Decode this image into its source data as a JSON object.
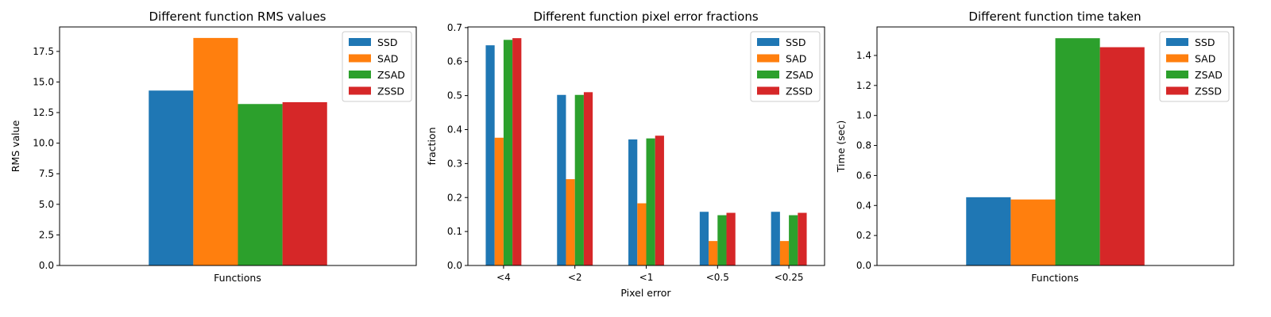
{
  "colors": {
    "SSD": "#1f77b4",
    "SAD": "#ff7f0e",
    "ZSAD": "#2ca02c",
    "ZSSD": "#d62728"
  },
  "chart_data": [
    {
      "type": "bar",
      "title": "Different function RMS values",
      "xlabel": "Functions",
      "ylabel": "RMS value",
      "categories": [
        ""
      ],
      "series": [
        {
          "name": "SSD",
          "values": [
            14.3
          ]
        },
        {
          "name": "SAD",
          "values": [
            18.6
          ]
        },
        {
          "name": "ZSAD",
          "values": [
            13.2
          ]
        },
        {
          "name": "ZSSD",
          "values": [
            13.35
          ]
        }
      ],
      "ylim": [
        0,
        19.5
      ],
      "yticks": [
        0.0,
        2.5,
        5.0,
        7.5,
        10.0,
        12.5,
        15.0,
        17.5
      ],
      "ytick_labels": [
        "0.0",
        "2.5",
        "5.0",
        "7.5",
        "10.0",
        "12.5",
        "15.0",
        "17.5"
      ],
      "legend": "top-right",
      "grid": false
    },
    {
      "type": "bar",
      "title": "Different function pixel error fractions",
      "xlabel": "Pixel error",
      "ylabel": "fraction",
      "categories": [
        "<4",
        "<2",
        "<1",
        "<0.5",
        "<0.25"
      ],
      "series": [
        {
          "name": "SSD",
          "values": [
            0.648,
            0.502,
            0.371,
            0.158,
            0.158
          ]
        },
        {
          "name": "SAD",
          "values": [
            0.376,
            0.254,
            0.183,
            0.072,
            0.072
          ]
        },
        {
          "name": "ZSAD",
          "values": [
            0.664,
            0.502,
            0.374,
            0.148,
            0.148
          ]
        },
        {
          "name": "ZSSD",
          "values": [
            0.669,
            0.51,
            0.382,
            0.155,
            0.155
          ]
        }
      ],
      "ylim": [
        0,
        0.702
      ],
      "yticks": [
        0.0,
        0.1,
        0.2,
        0.3,
        0.4,
        0.5,
        0.6,
        0.7
      ],
      "ytick_labels": [
        "0.0",
        "0.1",
        "0.2",
        "0.3",
        "0.4",
        "0.5",
        "0.6",
        "0.7"
      ],
      "legend": "top-right",
      "grid": false
    },
    {
      "type": "bar",
      "title": "Different function time taken",
      "xlabel": "Functions",
      "ylabel": "Time (sec)",
      "categories": [
        ""
      ],
      "series": [
        {
          "name": "SSD",
          "values": [
            0.455
          ]
        },
        {
          "name": "SAD",
          "values": [
            0.44
          ]
        },
        {
          "name": "ZSAD",
          "values": [
            1.515
          ]
        },
        {
          "name": "ZSSD",
          "values": [
            1.455
          ]
        }
      ],
      "ylim": [
        0,
        1.59
      ],
      "yticks": [
        0.0,
        0.2,
        0.4,
        0.6,
        0.8,
        1.0,
        1.2,
        1.4
      ],
      "ytick_labels": [
        "0.0",
        "0.2",
        "0.4",
        "0.6",
        "0.8",
        "1.0",
        "1.2",
        "1.4"
      ],
      "legend": "top-right",
      "grid": false
    }
  ]
}
